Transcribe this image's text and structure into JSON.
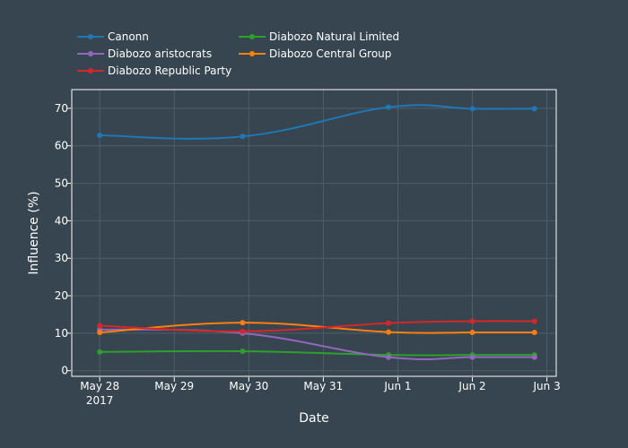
{
  "chart_data": {
    "type": "line",
    "xlabel": "Date",
    "ylabel": "Influence (%)",
    "x_ticks": [
      {
        "date": "2017-05-28",
        "label": "May 28",
        "sublabel": "2017"
      },
      {
        "date": "2017-05-29",
        "label": "May 29",
        "sublabel": ""
      },
      {
        "date": "2017-05-30",
        "label": "May 30",
        "sublabel": ""
      },
      {
        "date": "2017-05-31",
        "label": "May 31",
        "sublabel": ""
      },
      {
        "date": "2017-06-01",
        "label": "Jun 1",
        "sublabel": ""
      },
      {
        "date": "2017-06-02",
        "label": "Jun 2",
        "sublabel": ""
      },
      {
        "date": "2017-06-03",
        "label": "Jun 3",
        "sublabel": ""
      }
    ],
    "x_range": [
      "2017-05-27 15:00",
      "2017-06-03 03:00"
    ],
    "y_ticks": [
      0,
      10,
      20,
      30,
      40,
      50,
      60,
      70
    ],
    "ylim": [
      -1.5,
      75
    ],
    "grid": true,
    "legend_position": "top-left",
    "x": [
      "2017-05-28 00:00",
      "2017-05-29 22:00",
      "2017-05-31 21:00",
      "2017-06-02 00:00",
      "2017-06-02 20:00"
    ],
    "series": [
      {
        "name": "Canonn",
        "color": "#1f77b4",
        "values": [
          62.8,
          62.5,
          70.3,
          69.9,
          69.9
        ]
      },
      {
        "name": "Diabozo Natural Limited",
        "color": "#2ca02c",
        "values": [
          5.0,
          5.2,
          4.2,
          4.2,
          4.2
        ]
      },
      {
        "name": "Diabozo aristocrats",
        "color": "#9467bd",
        "values": [
          11.0,
          10.0,
          3.6,
          3.6,
          3.6
        ]
      },
      {
        "name": "Diabozo Central Group",
        "color": "#ff7f0e",
        "values": [
          10.2,
          12.8,
          10.3,
          10.2,
          10.2
        ]
      },
      {
        "name": "Diabozo Republic Party",
        "color": "#d62728",
        "values": [
          12.0,
          10.5,
          12.7,
          13.2,
          13.2
        ]
      }
    ]
  }
}
